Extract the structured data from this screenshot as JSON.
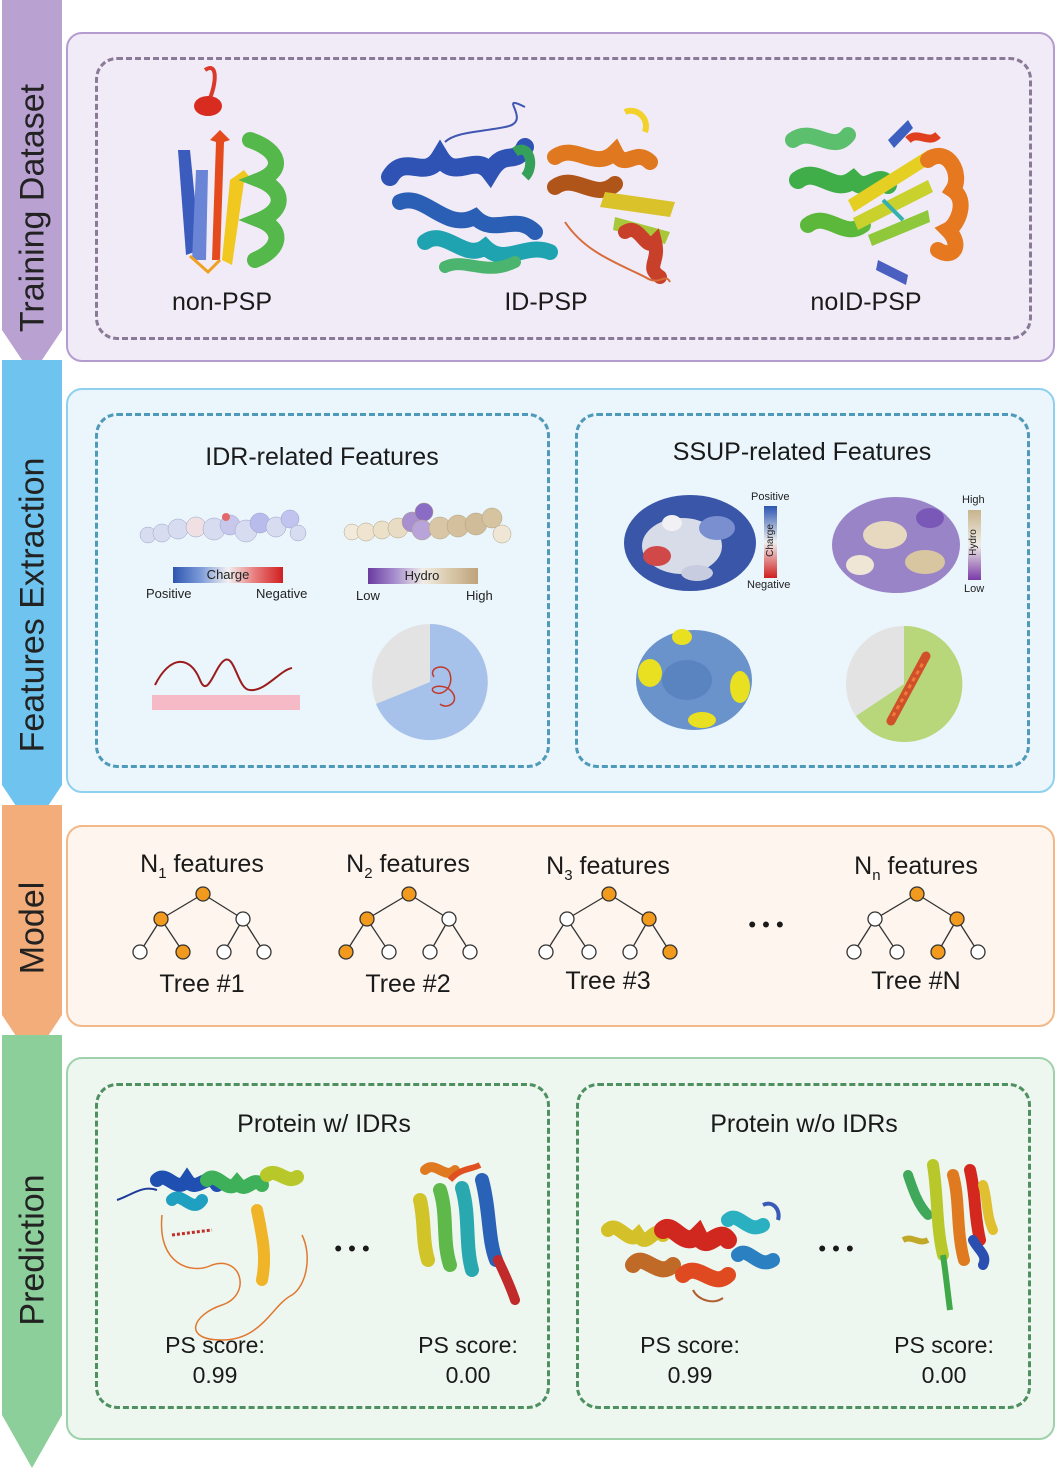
{
  "stages": [
    {
      "label": "Training Dataset",
      "color": "#b9a2d2"
    },
    {
      "label": "Features Extraction",
      "color": "#6ec4ee"
    },
    {
      "label": "Model",
      "color": "#f2ad7a"
    },
    {
      "label": "Prediction",
      "color": "#8ccf9a"
    }
  ],
  "training": {
    "classes": [
      "non-PSP",
      "ID-PSP",
      "noID-PSP"
    ]
  },
  "features": {
    "idr_title": "IDR-related Features",
    "ssup_title": "SSUP-related Features",
    "charge_bar": {
      "label": "Charge",
      "left": "Positive",
      "right": "Negative"
    },
    "hydro_bar": {
      "label": "Hydro",
      "left": "Low",
      "right": "High"
    },
    "charge_vbar": {
      "label": "Charge",
      "top": "Positive",
      "bottom": "Negative"
    },
    "hydro_vbar": {
      "label": "Hydro",
      "top": "High",
      "bottom": "Low"
    }
  },
  "model": {
    "trees": [
      {
        "n": "N",
        "sub": "1",
        "features": "features",
        "name": "Tree #1"
      },
      {
        "n": "N",
        "sub": "2",
        "features": "features",
        "name": "Tree #2"
      },
      {
        "n": "N",
        "sub": "3",
        "features": "features",
        "name": "Tree #3"
      },
      {
        "n": "N",
        "sub": "n",
        "features": "features",
        "name": "Tree #N"
      }
    ],
    "ellipsis": "• • •"
  },
  "prediction": {
    "with_idr": {
      "title": "Protein w/ IDRs",
      "score_label": "PS score:",
      "scores": [
        "0.99",
        "0.00"
      ]
    },
    "without_idr": {
      "title": "Protein w/o IDRs",
      "score_label": "PS score:",
      "scores": [
        "0.99",
        "0.00"
      ]
    },
    "ellipsis": "• • •"
  }
}
